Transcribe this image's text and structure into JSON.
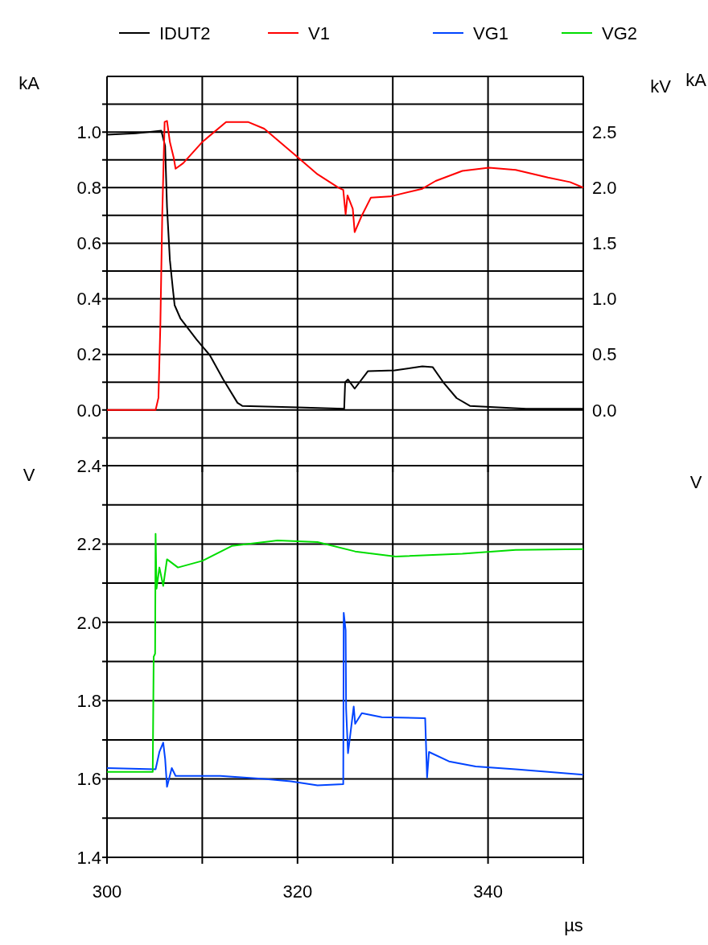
{
  "chart_data": [
    {
      "type": "line",
      "ylabel": "kA",
      "y2label": "kV",
      "annotations": [
        "kA"
      ],
      "legend": "top",
      "grid": true,
      "tick_labels": "y",
      "line_style": "solid",
      "marker": "none",
      "xlim": [
        300,
        350
      ],
      "xticks": [
        300,
        {
          "value": 310,
          "label": null
        },
        320,
        {
          "value": 330,
          "label": null
        },
        340,
        {
          "value": 350,
          "label": null
        }
      ],
      "ylim": [
        -0.2,
        1.2
      ],
      "yticks": [
        {
          "value": -0.1,
          "label": null
        },
        {
          "value": 0,
          "label": "0.0"
        },
        {
          "value": 0.1,
          "label": null
        },
        0.2,
        {
          "value": 0.3,
          "label": null
        },
        0.4,
        {
          "value": 0.5,
          "label": null
        },
        0.6,
        {
          "value": 0.7,
          "label": null
        },
        0.8,
        {
          "value": 0.9,
          "label": null
        },
        {
          "value": 1,
          "label": "1.0"
        },
        {
          "value": 1.1,
          "label": null
        }
      ],
      "y2lim": [
        -0.5,
        3.0
      ],
      "y2ticks": [
        {
          "value": 0,
          "label": "0.0"
        },
        0.5,
        {
          "value": 1,
          "label": "1.0"
        },
        1.5,
        {
          "value": 2,
          "label": "2.0"
        },
        2.5
      ],
      "series": [
        {
          "name": "IDUT2",
          "color": "#000000",
          "x": [
            300,
            303,
            305.7,
            306.1,
            306.3,
            306.6,
            306.9,
            307.1,
            307.7,
            309.4,
            310.8,
            312.2,
            313.7,
            314.2,
            320,
            324.9,
            325,
            325.3,
            326.0,
            327.4,
            330.2,
            333.1,
            334.2,
            335.3,
            336.7,
            338.1,
            344,
            350
          ],
          "values": [
            0.99,
            0.995,
            1.005,
            0.95,
            0.73,
            0.54,
            0.44,
            0.377,
            0.33,
            0.254,
            0.197,
            0.11,
            0.026,
            0.015,
            0.01,
            0.005,
            0.1,
            0.11,
            0.077,
            0.14,
            0.143,
            0.157,
            0.154,
            0.1,
            0.043,
            0.015,
            0.005,
            0.005
          ]
        },
        {
          "name": "V1",
          "color": "#ff0000",
          "axis": "y2",
          "x": [
            300,
            305.1,
            305.4,
            305.6,
            305.8,
            306.05,
            306.3,
            306.6,
            307.0,
            307.2,
            308.0,
            310.0,
            312.5,
            314.8,
            316.5,
            319.8,
            322.1,
            324.3,
            324.8,
            325.05,
            325.25,
            325.8,
            326.0,
            326.7,
            327.7,
            329.7,
            333.1,
            334.5,
            337.3,
            340.1,
            342.9,
            346.3,
            348.6,
            350
          ],
          "values": [
            0.0,
            0.0,
            0.11,
            0.76,
            1.76,
            2.59,
            2.6,
            2.41,
            2.27,
            2.17,
            2.22,
            2.41,
            2.59,
            2.59,
            2.53,
            2.29,
            2.12,
            2.0,
            1.98,
            1.76,
            1.93,
            1.81,
            1.6,
            1.74,
            1.91,
            1.92,
            1.99,
            2.06,
            2.15,
            2.18,
            2.16,
            2.09,
            2.05,
            2.0
          ]
        }
      ]
    },
    {
      "type": "line",
      "ylabel": "V",
      "xlabel": "µs",
      "annotations": [
        "V"
      ],
      "legend": "top",
      "grid": true,
      "line_style": "solid",
      "marker": "none",
      "xlim": [
        300,
        350
      ],
      "xticks": [
        300,
        {
          "value": 310,
          "label": null
        },
        320,
        {
          "value": 330,
          "label": null
        },
        340,
        {
          "value": 350,
          "label": null
        }
      ],
      "ylim": [
        1.4,
        2.4
      ],
      "yticks": [
        1.4,
        {
          "value": 1.5,
          "label": null
        },
        1.6,
        {
          "value": 1.7,
          "label": null
        },
        1.8,
        {
          "value": 1.9,
          "label": null
        },
        {
          "value": 2.0,
          "label": "2.0"
        },
        {
          "value": 2.1,
          "label": null
        },
        2.2,
        {
          "value": 2.3,
          "label": null
        },
        2.4
      ],
      "series": [
        {
          "name": "VG1",
          "color": "#0044ff",
          "x": [
            300,
            305.1,
            305.5,
            305.9,
            306.1,
            306.3,
            306.8,
            307.2,
            311.9,
            316.5,
            319.3,
            322.1,
            324.8,
            324.85,
            325.05,
            325.1,
            325.3,
            325.9,
            326.05,
            326.75,
            328.85,
            333.4,
            333.6,
            333.8,
            335.9,
            338.7,
            342.9,
            350
          ],
          "values": [
            1.628,
            1.625,
            1.669,
            1.693,
            1.652,
            1.58,
            1.628,
            1.608,
            1.608,
            1.6,
            1.594,
            1.584,
            1.587,
            2.024,
            1.98,
            1.78,
            1.666,
            1.785,
            1.741,
            1.768,
            1.758,
            1.755,
            1.604,
            1.669,
            1.645,
            1.632,
            1.625,
            1.611
          ]
        },
        {
          "name": "VG2",
          "color": "#00dd00",
          "x": [
            300,
            304.8,
            304.9,
            305.05,
            305.1,
            305.2,
            305.5,
            305.9,
            306.3,
            307.45,
            310,
            313.1,
            317.9,
            322.1,
            326.05,
            330.3,
            337.3,
            342.9,
            350
          ],
          "values": [
            1.618,
            1.618,
            1.912,
            1.92,
            2.226,
            2.086,
            2.14,
            2.093,
            2.161,
            2.14,
            2.157,
            2.195,
            2.209,
            2.205,
            2.181,
            2.168,
            2.175,
            2.185,
            2.187
          ]
        }
      ]
    }
  ]
}
